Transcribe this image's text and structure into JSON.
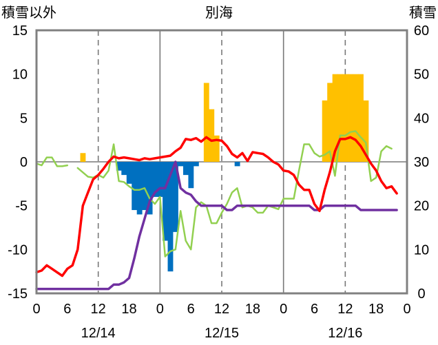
{
  "chart_data": {
    "type": "bar+line",
    "title": "別海",
    "left_axis_label": "積雪以外",
    "right_axis_label": "積雪",
    "left_ylim": [
      -15,
      15
    ],
    "right_ylim": [
      0,
      60
    ],
    "left_ticks": [
      "-15",
      "-10",
      "-5",
      "0",
      "5",
      "10",
      "15"
    ],
    "right_ticks": [
      "0",
      "10",
      "20",
      "30",
      "40",
      "50",
      "60"
    ],
    "x_range_hours": [
      0,
      72
    ],
    "x_hour_ticks": [
      "0",
      "6",
      "12",
      "18",
      "0",
      "6",
      "12",
      "18",
      "0",
      "6",
      "12",
      "18",
      "0"
    ],
    "date_labels": [
      {
        "label": "12/14",
        "hour": 12
      },
      {
        "label": "12/15",
        "hour": 36
      },
      {
        "label": "12/16",
        "hour": 60
      }
    ],
    "grid": {
      "day_lines": [
        24,
        48
      ],
      "dashed_lines": [
        12,
        36,
        60
      ],
      "horizontal_at": [
        0
      ]
    },
    "colors": {
      "precip_bar": "#ffc000",
      "snow_change_bar": "#0070c0",
      "temperature_line": "#ff0000",
      "snow_depth_line": "#7030a0",
      "green_line": "#92d050"
    },
    "precipitation_bars": [
      {
        "hour": 9,
        "value": 1
      },
      {
        "hour": 33,
        "value": 9
      },
      {
        "hour": 34,
        "value": 6
      },
      {
        "hour": 35,
        "value": 3
      },
      {
        "hour": 56,
        "value": 7
      },
      {
        "hour": 57,
        "value": 9
      },
      {
        "hour": 58,
        "value": 10
      },
      {
        "hour": 59,
        "value": 10
      },
      {
        "hour": 60,
        "value": 10
      },
      {
        "hour": 61,
        "value": 10
      },
      {
        "hour": 62,
        "value": 10
      },
      {
        "hour": 63,
        "value": 10
      },
      {
        "hour": 64,
        "value": 7
      }
    ],
    "snow_change_bars": [
      {
        "hour": 16,
        "value": -1
      },
      {
        "hour": 17,
        "value": -1.5
      },
      {
        "hour": 18,
        "value": -2.5
      },
      {
        "hour": 19,
        "value": -5.5
      },
      {
        "hour": 20,
        "value": -6
      },
      {
        "hour": 21,
        "value": -5.5
      },
      {
        "hour": 22,
        "value": -6
      },
      {
        "hour": 23,
        "value": -4
      },
      {
        "hour": 24,
        "value": -4
      },
      {
        "hour": 25,
        "value": -9
      },
      {
        "hour": 26,
        "value": -12.5
      },
      {
        "hour": 27,
        "value": -8
      },
      {
        "hour": 28,
        "value": -0.5
      },
      {
        "hour": 29,
        "value": -1.5
      },
      {
        "hour": 30,
        "value": -3
      },
      {
        "hour": 31,
        "value": -0.5
      },
      {
        "hour": 39,
        "value": -0.5
      }
    ],
    "series": [
      {
        "key": "temperature",
        "axis": "left",
        "color": "#ff0000",
        "width": 3.5,
        "points": [
          [
            0,
            -12.6
          ],
          [
            1,
            -12.4
          ],
          [
            2,
            -11.8
          ],
          [
            3,
            -12.2
          ],
          [
            4,
            -12.6
          ],
          [
            5,
            -13.0
          ],
          [
            6,
            -12.2
          ],
          [
            7,
            -11.8
          ],
          [
            8,
            -10.0
          ],
          [
            9,
            -5.0
          ],
          [
            10,
            -3.5
          ],
          [
            11,
            -2.0
          ],
          [
            12,
            -1.5
          ],
          [
            13,
            -0.8
          ],
          [
            14,
            0.0
          ],
          [
            15,
            0.6
          ],
          [
            16,
            0.4
          ],
          [
            17,
            0.5
          ],
          [
            18,
            0.4
          ],
          [
            19,
            0.3
          ],
          [
            20,
            0.2
          ],
          [
            21,
            0.4
          ],
          [
            22,
            0.3
          ],
          [
            23,
            0.4
          ],
          [
            24,
            0.5
          ],
          [
            25,
            0.6
          ],
          [
            26,
            0.7
          ],
          [
            27,
            1.2
          ],
          [
            28,
            1.6
          ],
          [
            29,
            2.6
          ],
          [
            30,
            2.5
          ],
          [
            31,
            2.7
          ],
          [
            32,
            2.3
          ],
          [
            33,
            2.8
          ],
          [
            34,
            2.4
          ],
          [
            35,
            2.5
          ],
          [
            36,
            2.4
          ],
          [
            37,
            1.8
          ],
          [
            38,
            0.9
          ],
          [
            39,
            0.5
          ],
          [
            40,
            1.0
          ],
          [
            41,
            0.1
          ],
          [
            42,
            1.1
          ],
          [
            43,
            1.0
          ],
          [
            44,
            0.9
          ],
          [
            45,
            0.5
          ],
          [
            46,
            0.0
          ],
          [
            47,
            -0.3
          ],
          [
            48,
            -1.0
          ],
          [
            49,
            -1.1
          ],
          [
            50,
            -1.5
          ],
          [
            51,
            -2.6
          ],
          [
            52,
            -3.2
          ],
          [
            53,
            -3.2
          ],
          [
            54,
            -4.8
          ],
          [
            55,
            -5.6
          ],
          [
            56,
            -3.2
          ],
          [
            57,
            -1.2
          ],
          [
            58,
            1.2
          ],
          [
            59,
            2.6
          ],
          [
            60,
            2.6
          ],
          [
            61,
            2.8
          ],
          [
            62,
            2.5
          ],
          [
            63,
            1.8
          ],
          [
            64,
            0.8
          ],
          [
            65,
            -0.2
          ],
          [
            66,
            -1.0
          ],
          [
            67,
            -2.2
          ],
          [
            68,
            -3.0
          ],
          [
            69,
            -2.8
          ],
          [
            70,
            -3.6
          ]
        ]
      },
      {
        "key": "snow_depth",
        "axis": "right",
        "color": "#7030a0",
        "width": 3.5,
        "points": [
          [
            0,
            1
          ],
          [
            12,
            1
          ],
          [
            14,
            1
          ],
          [
            15,
            2
          ],
          [
            16,
            2
          ],
          [
            17,
            2.5
          ],
          [
            18,
            3.5
          ],
          [
            19,
            8
          ],
          [
            20,
            13
          ],
          [
            21,
            17
          ],
          [
            22,
            21
          ],
          [
            23,
            23
          ],
          [
            24,
            24
          ],
          [
            25,
            24
          ],
          [
            26,
            27
          ],
          [
            27,
            30
          ],
          [
            28,
            24
          ],
          [
            29,
            23
          ],
          [
            30,
            22.5
          ],
          [
            31,
            21
          ],
          [
            32,
            20
          ],
          [
            36,
            20
          ],
          [
            37,
            19
          ],
          [
            38,
            19
          ],
          [
            39,
            20
          ],
          [
            53,
            20
          ],
          [
            54,
            19
          ],
          [
            55,
            19
          ],
          [
            56,
            20
          ],
          [
            62,
            20
          ],
          [
            63,
            19
          ],
          [
            70,
            19
          ]
        ]
      },
      {
        "key": "green",
        "axis": "left",
        "color": "#92d050",
        "width": 2.5,
        "segments": [
          [
            [
              0,
              -0.2
            ],
            [
              1,
              -0.4
            ],
            [
              2,
              0.5
            ],
            [
              3,
              0.5
            ],
            [
              4,
              -0.5
            ],
            [
              5,
              -0.5
            ],
            [
              6,
              -0.4
            ]
          ],
          [
            [
              8,
              -0.7
            ],
            [
              9,
              -1.2
            ],
            [
              10,
              -1.7
            ],
            [
              11,
              -1.8
            ],
            [
              12,
              -1.5
            ],
            [
              13,
              -1.8
            ],
            [
              14,
              -1.0
            ],
            [
              15,
              2.0
            ],
            [
              16,
              -2.2
            ],
            [
              17,
              -2.3
            ],
            [
              18,
              -2.8
            ],
            [
              19,
              -3.2
            ],
            [
              20,
              -3.2
            ],
            [
              21,
              -3.0
            ],
            [
              22,
              -4.2
            ],
            [
              23,
              -4.8
            ],
            [
              24,
              -4.0
            ],
            [
              25,
              -10.8
            ],
            [
              26,
              -10.2
            ],
            [
              27,
              -10.0
            ],
            [
              28,
              -5.6
            ],
            [
              29,
              -9.0
            ],
            [
              30,
              -10.0
            ],
            [
              31,
              -5.2
            ],
            [
              32,
              -4.6
            ],
            [
              33,
              -5.0
            ],
            [
              34,
              -7.0
            ],
            [
              35,
              -7.0
            ],
            [
              36,
              -5.8
            ],
            [
              37,
              -4.8
            ],
            [
              38,
              -3.5
            ],
            [
              39,
              -3.0
            ],
            [
              40,
              -5.2
            ],
            [
              41,
              -5.0
            ],
            [
              42,
              -5.2
            ],
            [
              43,
              -5.8
            ],
            [
              44,
              -5.8
            ],
            [
              45,
              -5.0
            ],
            [
              46,
              -5.2
            ],
            [
              47,
              -5.4
            ],
            [
              48,
              -4.2
            ],
            [
              49,
              -4.2
            ],
            [
              50,
              -4.2
            ],
            [
              51,
              -1.0
            ],
            [
              52,
              2.0
            ],
            [
              53,
              2.0
            ],
            [
              54,
              1.0
            ],
            [
              55,
              0.6
            ],
            [
              56,
              0.8
            ],
            [
              57,
              1.2
            ],
            [
              58,
              -1.6
            ],
            [
              59,
              3.0
            ],
            [
              60,
              3.0
            ],
            [
              61,
              3.4
            ],
            [
              62,
              3.5
            ],
            [
              63,
              2.8
            ],
            [
              64,
              2.2
            ],
            [
              65,
              -2.2
            ],
            [
              66,
              -1.8
            ],
            [
              67,
              1.2
            ],
            [
              68,
              1.8
            ],
            [
              69,
              1.5
            ]
          ]
        ]
      }
    ]
  }
}
